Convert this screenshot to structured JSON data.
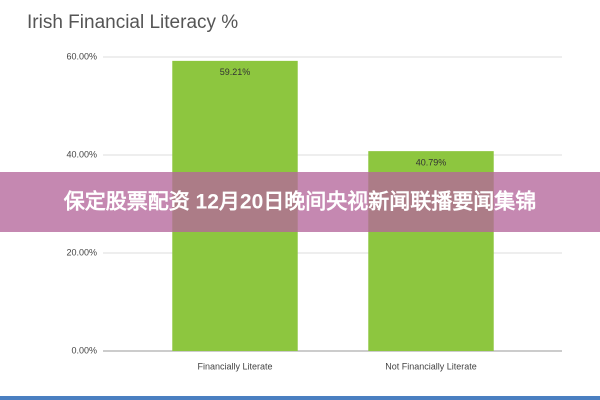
{
  "chart_data": {
    "type": "bar",
    "title": "Irish Financial Literacy %",
    "categories": [
      "Financially Literate",
      "Not Financially Literate"
    ],
    "values": [
      59.21,
      40.79
    ],
    "value_labels": [
      "59.21%",
      "40.79%"
    ],
    "color": "#8dc63f",
    "ylim": [
      0,
      60
    ],
    "yticks": [
      {
        "value": 0,
        "label": "0.00%"
      },
      {
        "value": 20,
        "label": "20.00%"
      },
      {
        "value": 40,
        "label": "40.00%"
      },
      {
        "value": 60,
        "label": "60.00%"
      }
    ],
    "grid": true
  },
  "banner": "保定股票配资 12月20日晚间央视新闻联播要闻集锦"
}
